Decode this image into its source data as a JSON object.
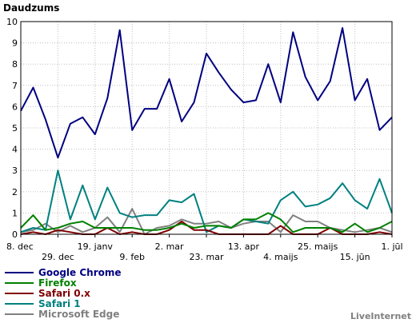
{
  "chart_data": {
    "type": "line",
    "title": "Daudzums",
    "ylim": [
      0,
      10
    ],
    "yticks": [
      0,
      1,
      2,
      3,
      4,
      5,
      6,
      7,
      8,
      9,
      10
    ],
    "x_range": [
      0,
      30
    ],
    "x_ticks": [
      {
        "label": "8. dec",
        "x": 0
      },
      {
        "label": "29. dec",
        "x": 3
      },
      {
        "label": "19. janv",
        "x": 6
      },
      {
        "label": "9. feb",
        "x": 9
      },
      {
        "label": "2. mar",
        "x": 12
      },
      {
        "label": "23. mar",
        "x": 15
      },
      {
        "label": "13. apr",
        "x": 18
      },
      {
        "label": "4. maijs",
        "x": 21
      },
      {
        "label": "25. maijs",
        "x": 24
      },
      {
        "label": "15. jūn",
        "x": 27
      },
      {
        "label": "1. jūl",
        "x": 30
      }
    ],
    "grid": true,
    "legend_position": "bottom-left",
    "series": [
      {
        "name": "Google Chrome",
        "color": "#000080",
        "values": [
          5.8,
          6.9,
          5.4,
          3.6,
          5.2,
          5.5,
          4.7,
          6.4,
          9.6,
          4.9,
          5.9,
          5.9,
          7.3,
          5.3,
          6.2,
          8.5,
          7.6,
          6.8,
          6.2,
          6.3,
          8.0,
          6.2,
          9.5,
          7.4,
          6.3,
          7.2,
          9.7,
          6.3,
          7.3,
          4.9,
          5.5
        ]
      },
      {
        "name": "Firefox",
        "color": "#008000",
        "values": [
          0.3,
          0.9,
          0.2,
          0.3,
          0.5,
          0.6,
          0.3,
          0.3,
          0.3,
          0.3,
          0.2,
          0.2,
          0.3,
          0.5,
          0.3,
          0.4,
          0.4,
          0.3,
          0.7,
          0.7,
          1.0,
          0.7,
          0.1,
          0.3,
          0.3,
          0.3,
          0.1,
          0.5,
          0.1,
          0.3,
          0.6
        ]
      },
      {
        "name": "Safari 0.x",
        "color": "#800000",
        "values": [
          0.0,
          0.1,
          0.0,
          0.2,
          0.1,
          0.0,
          0.0,
          0.3,
          0.0,
          0.1,
          0.0,
          0.0,
          0.2,
          0.6,
          0.2,
          0.2,
          0.0,
          0.0,
          0.0,
          0.0,
          0.0,
          0.4,
          0.0,
          0.0,
          0.0,
          0.3,
          0.0,
          0.0,
          0.0,
          0.1,
          0.0
        ]
      },
      {
        "name": "Safari 1",
        "color": "#008080",
        "values": [
          0.1,
          0.3,
          0.2,
          3.0,
          0.7,
          2.3,
          0.7,
          2.2,
          1.0,
          0.8,
          0.9,
          0.9,
          1.6,
          1.5,
          1.9,
          0.1,
          0.4,
          0.3,
          0.7,
          0.6,
          0.5,
          1.6,
          2.0,
          1.3,
          1.4,
          1.7,
          2.4,
          1.6,
          1.2,
          2.6,
          1.0
        ]
      },
      {
        "name": "Microsoft Edge",
        "color": "#808080",
        "values": [
          0.1,
          0.2,
          0.5,
          0.1,
          0.4,
          0.1,
          0.3,
          0.8,
          0.1,
          1.2,
          0.0,
          0.3,
          0.4,
          0.7,
          0.5,
          0.5,
          0.6,
          0.3,
          0.5,
          0.6,
          0.6,
          0.1,
          0.9,
          0.6,
          0.6,
          0.3,
          0.2,
          0.1,
          0.2,
          0.3,
          0.1
        ]
      }
    ]
  },
  "footer": {
    "credit": "LiveInternet"
  }
}
